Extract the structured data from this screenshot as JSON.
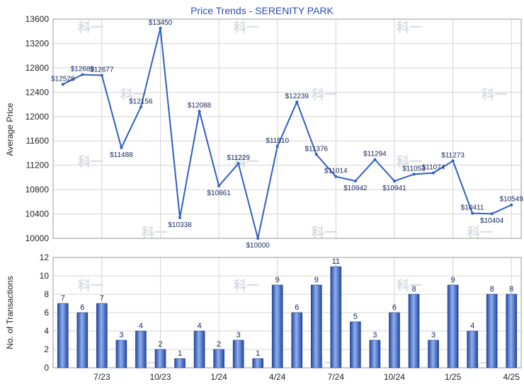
{
  "chart_data": [
    {
      "type": "line",
      "title": "Price Trends - SERENITY PARK",
      "ylabel": "Average Price",
      "ylim": [
        10000,
        13600
      ],
      "yticks": [
        10000,
        10400,
        10800,
        11200,
        11600,
        12000,
        12400,
        12800,
        13200,
        13600
      ],
      "grid": true,
      "color": "#2f5fc4",
      "values": [
        12528,
        12689,
        12677,
        11488,
        12156,
        13450,
        10338,
        12088,
        10861,
        11229,
        10000,
        11510,
        12239,
        11376,
        11014,
        10942,
        11294,
        10941,
        11053,
        11074,
        11273,
        10411,
        10404,
        10549
      ],
      "labels": [
        "$12528",
        "$12689",
        "$12677",
        "$11488",
        "$12156",
        "$13450",
        "$10338",
        "$12088",
        "$10861",
        "$11229",
        "$10000",
        "$11510",
        "$12239",
        "$11376",
        "$11014",
        "$10942",
        "$11294",
        "$10941",
        "$11053",
        "$11074",
        "$11273",
        "$10411",
        "$10404",
        "$10549"
      ]
    },
    {
      "type": "bar",
      "ylabel": "No. of Transactions",
      "ylim": [
        0,
        12
      ],
      "yticks": [
        0,
        2,
        4,
        6,
        8,
        10,
        12
      ],
      "grid": true,
      "color": "#3a64c8",
      "values": [
        7,
        6,
        7,
        3,
        4,
        2,
        1,
        4,
        2,
        3,
        1,
        9,
        6,
        9,
        11,
        5,
        3,
        6,
        8,
        3,
        9,
        4,
        8,
        8
      ],
      "xtick_labels": [
        "7/23",
        "10/23",
        "1/24",
        "4/24",
        "7/24",
        "10/24",
        "1/25",
        "4/25"
      ]
    }
  ]
}
